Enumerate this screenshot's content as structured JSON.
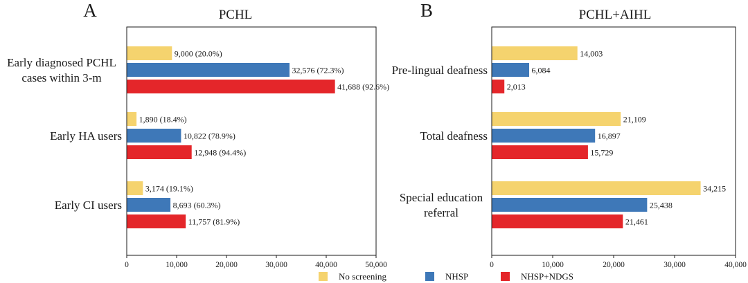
{
  "legend": [
    {
      "label": "No screening",
      "color": "#F5D36E"
    },
    {
      "label": "NHSP",
      "color": "#3E78B8"
    },
    {
      "label": "NHSP+NDGS",
      "color": "#E4262A"
    }
  ],
  "chart_data": [
    {
      "type": "bar",
      "orientation": "horizontal",
      "panel": "A",
      "title": "PCHL",
      "categories": [
        [
          "Early diagnosed PCHL",
          "cases within 3-m"
        ],
        [
          "Early HA users"
        ],
        [
          "Early CI users"
        ]
      ],
      "series": [
        {
          "name": "No screening",
          "color": "#F5D36E",
          "values": [
            9000,
            1890,
            3174
          ],
          "labels": [
            "9,000  (20.0%)",
            "1,890  (18.4%)",
            "3,174  (19.1%)"
          ]
        },
        {
          "name": "NHSP",
          "color": "#3E78B8",
          "values": [
            32576,
            10822,
            8693
          ],
          "labels": [
            "32,576 (72.3%)",
            "10,822  (78.9%)",
            "8,693  (60.3%)"
          ]
        },
        {
          "name": "NHSP+NDGS",
          "color": "#E4262A",
          "values": [
            41688,
            12948,
            11757
          ],
          "labels": [
            "41,688 (92.6%)",
            "12,948  (94.4%)",
            "11,757  (81.9%)"
          ]
        }
      ],
      "xlim": [
        0,
        50000
      ],
      "xticks": [
        0,
        10000,
        20000,
        30000,
        40000,
        50000
      ],
      "xtick_labels": [
        "0",
        "10,000",
        "20,000",
        "30,000",
        "40,000",
        "50,000"
      ]
    },
    {
      "type": "bar",
      "orientation": "horizontal",
      "panel": "B",
      "title": "PCHL+AIHL",
      "categories": [
        [
          "Pre-lingual deafness"
        ],
        [
          "Total deafness"
        ],
        [
          "Special education",
          "referral"
        ]
      ],
      "series": [
        {
          "name": "No screening",
          "color": "#F5D36E",
          "values": [
            14003,
            21109,
            34215
          ],
          "labels": [
            "14,003",
            "21,109",
            "34,215"
          ]
        },
        {
          "name": "NHSP",
          "color": "#3E78B8",
          "values": [
            6084,
            16897,
            25438
          ],
          "labels": [
            "6,084",
            "16,897",
            "25,438"
          ]
        },
        {
          "name": "NHSP+NDGS",
          "color": "#E4262A",
          "values": [
            2013,
            15729,
            21461
          ],
          "labels": [
            "2,013",
            "15,729",
            "21,461"
          ]
        }
      ],
      "xlim": [
        0,
        40000
      ],
      "xticks": [
        0,
        10000,
        20000,
        30000,
        40000
      ],
      "xtick_labels": [
        "0",
        "10,000",
        "20,000",
        "30,000",
        "40,000"
      ]
    }
  ]
}
